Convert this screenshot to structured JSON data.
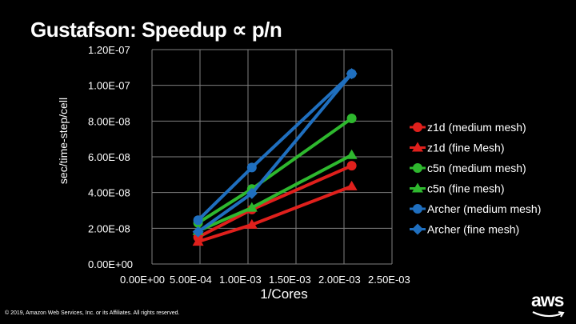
{
  "chart_data": {
    "type": "line",
    "title": "Gustafson: Speedup ∝ p/n",
    "xlabel": "1/Cores",
    "ylabel": "sec/time-step/cell",
    "xlim": [
      0,
      0.0025
    ],
    "ylim": [
      0,
      1.2e-07
    ],
    "x_ticks": [
      "0.00E+00",
      "5.00E-04",
      "1.00E-03",
      "1.50E-03",
      "2.00E-03",
      "2.50E-03"
    ],
    "y_ticks": [
      "0.00E+00",
      "2.00E-08",
      "4.00E-08",
      "6.00E-08",
      "8.00E-08",
      "1.00E-07",
      "1.20E-07"
    ],
    "grid": true,
    "legend_position": "right",
    "series": [
      {
        "name": "z1d (medium mesh)",
        "color": "#e0201c",
        "marker": "circle",
        "x": [
          0.00048,
          0.00104,
          0.00208
        ],
        "y": [
          1.5e-08,
          3.05e-08,
          5.5e-08
        ]
      },
      {
        "name": "z1d (fine Mesh)",
        "color": "#e0201c",
        "marker": "triangle",
        "x": [
          0.00048,
          0.00104,
          0.00208
        ],
        "y": [
          1.25e-08,
          2.2e-08,
          4.35e-08
        ]
      },
      {
        "name": "c5n (medium mesh)",
        "color": "#2eb82e",
        "marker": "circle",
        "x": [
          0.00048,
          0.00104,
          0.00208
        ],
        "y": [
          2.3e-08,
          4.2e-08,
          8.15e-08
        ]
      },
      {
        "name": "c5n (fine mesh)",
        "color": "#2eb82e",
        "marker": "triangle",
        "x": [
          0.00048,
          0.00104,
          0.00208
        ],
        "y": [
          1.85e-08,
          3.15e-08,
          6.1e-08
        ]
      },
      {
        "name": "Archer (medium mesh)",
        "color": "#1f6fbf",
        "marker": "circle",
        "x": [
          0.00048,
          0.00104,
          0.00208
        ],
        "y": [
          2.45e-08,
          5.4e-08,
          1.065e-07
        ]
      },
      {
        "name": "Archer (fine mesh)",
        "color": "#1f6fbf",
        "marker": "diamond",
        "x": [
          0.00048,
          0.00104,
          0.00208
        ],
        "y": [
          1.8e-08,
          3.95e-08,
          1.065e-07
        ]
      }
    ]
  },
  "footer": {
    "copyright": "© 2019, Amazon Web Services, Inc. or its Affiliates. All rights reserved.",
    "logo_text": "aws"
  }
}
